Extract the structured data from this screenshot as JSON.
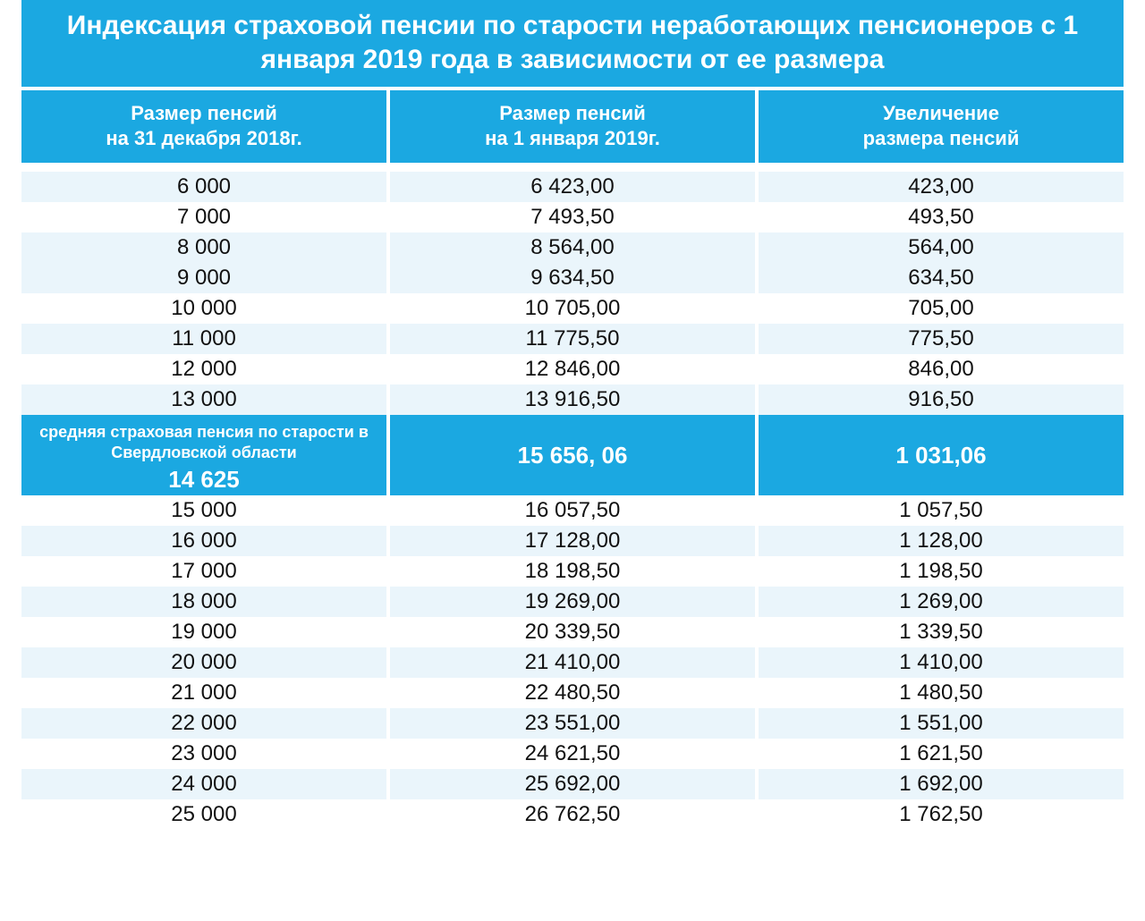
{
  "colors": {
    "primary": "#1ba8e1",
    "alt_row": "#eaf5fb",
    "text": "#111111",
    "white": "#ffffff"
  },
  "title": "Индексация страховой пенсии по старости неработающих пенсионеров с 1 января 2019 года в зависимости от ее размера",
  "columns": [
    "Размер пенсий\nна 31 декабря  2018г.",
    "Размер пенсий\nна 1 января  2019г.",
    "Увеличение\nразмера  пенсий"
  ],
  "highlight": {
    "label": "средняя страховая пенсия по старости  в Свердловской области",
    "col0": "14 625",
    "col1": "15 656, 06",
    "col2": "1 031,06"
  },
  "rows_top": [
    {
      "c0": "6 000",
      "c1": "6 423,00",
      "c2": "423,00"
    },
    {
      "c0": "7 000",
      "c1": "7 493,50",
      "c2": "493,50"
    },
    {
      "c0": "8 000",
      "c1": "8 564,00",
      "c2": "564,00"
    },
    {
      "c0": "9 000",
      "c1": "9 634,50",
      "c2": "634,50"
    },
    {
      "c0": "10 000",
      "c1": "10 705,00",
      "c2": "705,00"
    },
    {
      "c0": "11 000",
      "c1": "11 775,50",
      "c2": "775,50"
    },
    {
      "c0": "12 000",
      "c1": "12 846,00",
      "c2": "846,00"
    },
    {
      "c0": "13 000",
      "c1": "13 916,50",
      "c2": "916,50"
    }
  ],
  "rows_bottom": [
    {
      "c0": "15 000",
      "c1": "16 057,50",
      "c2": "1 057,50"
    },
    {
      "c0": "16 000",
      "c1": "17 128,00",
      "c2": "1 128,00"
    },
    {
      "c0": "17 000",
      "c1": "18 198,50",
      "c2": "1 198,50"
    },
    {
      "c0": "18 000",
      "c1": "19 269,00",
      "c2": "1 269,00"
    },
    {
      "c0": "19 000",
      "c1": "20 339,50",
      "c2": "1 339,50"
    },
    {
      "c0": "20 000",
      "c1": "21 410,00",
      "c2": "1 410,00"
    },
    {
      "c0": "21 000",
      "c1": "22 480,50",
      "c2": "1 480,50"
    },
    {
      "c0": "22 000",
      "c1": "23 551,00",
      "c2": "1 551,00"
    },
    {
      "c0": "23 000",
      "c1": "24 621,50",
      "c2": "1 621,50"
    },
    {
      "c0": "24 000",
      "c1": "25 692,00",
      "c2": "1 692,00"
    },
    {
      "c0": "25 000",
      "c1": "26 762,50",
      "c2": "1 762,50"
    }
  ]
}
